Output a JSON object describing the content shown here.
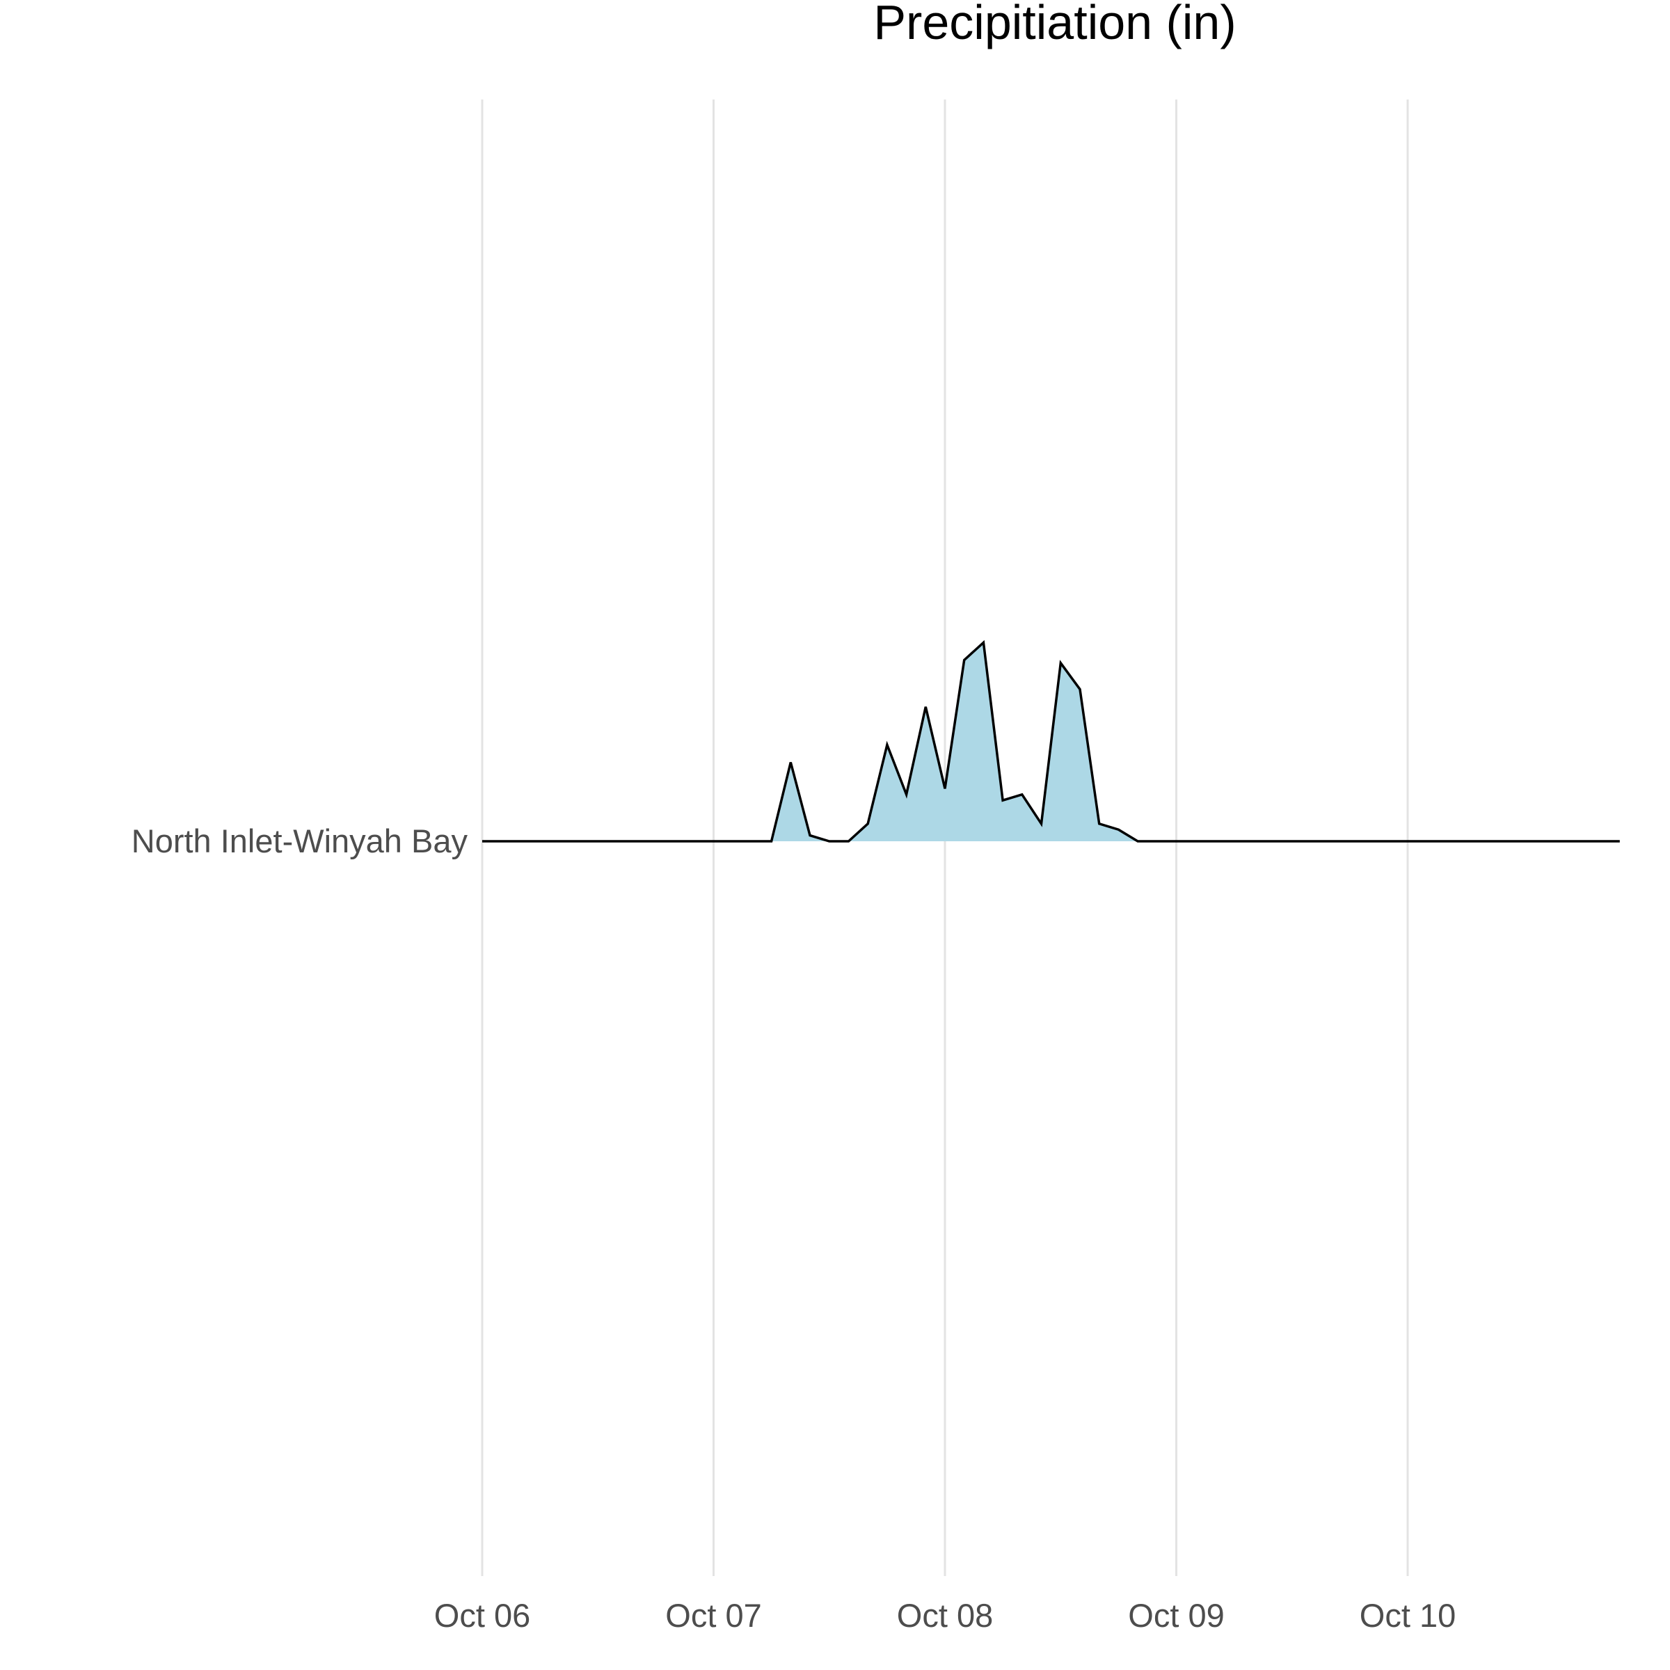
{
  "chart_data": {
    "type": "area",
    "title": "Precipitiation (in)",
    "xlabel": "",
    "ylabel": "",
    "fill_color": "#ADD8E6",
    "line_color": "#000000",
    "grid_color": "#E3E3E3",
    "grid": "vertical major only",
    "legend": "none",
    "x_ticks": [
      "Oct 06",
      "Oct 07",
      "Oct 08",
      "Oct 09",
      "Oct 10"
    ],
    "x_range": [
      "Oct 06 00:00",
      "Oct 10 22:00"
    ],
    "y_categories": [
      "North Inlet-Winyah Bay"
    ],
    "series": [
      {
        "name": "North Inlet-Winyah Bay",
        "x": [
          "Oct 06 00:00",
          "Oct 07 00:00",
          "Oct 07 06:00",
          "Oct 07 08:00",
          "Oct 07 10:00",
          "Oct 07 12:00",
          "Oct 07 14:00",
          "Oct 07 16:00",
          "Oct 07 18:00",
          "Oct 07 20:00",
          "Oct 07 22:00",
          "Oct 08 00:00",
          "Oct 08 02:00",
          "Oct 08 04:00",
          "Oct 08 06:00",
          "Oct 08 08:00",
          "Oct 08 10:00",
          "Oct 08 12:00",
          "Oct 08 14:00",
          "Oct 08 16:00",
          "Oct 08 18:00",
          "Oct 08 20:00",
          "Oct 08 22:00",
          "Oct 09 00:00",
          "Oct 10 22:00"
        ],
        "values": [
          0,
          0,
          0,
          0.27,
          0.02,
          0,
          0,
          0.06,
          0.33,
          0.16,
          0.46,
          0.18,
          0.62,
          0.68,
          0.14,
          0.16,
          0.06,
          0.61,
          0.52,
          0.06,
          0.04,
          0,
          0,
          0,
          0
        ]
      }
    ]
  }
}
